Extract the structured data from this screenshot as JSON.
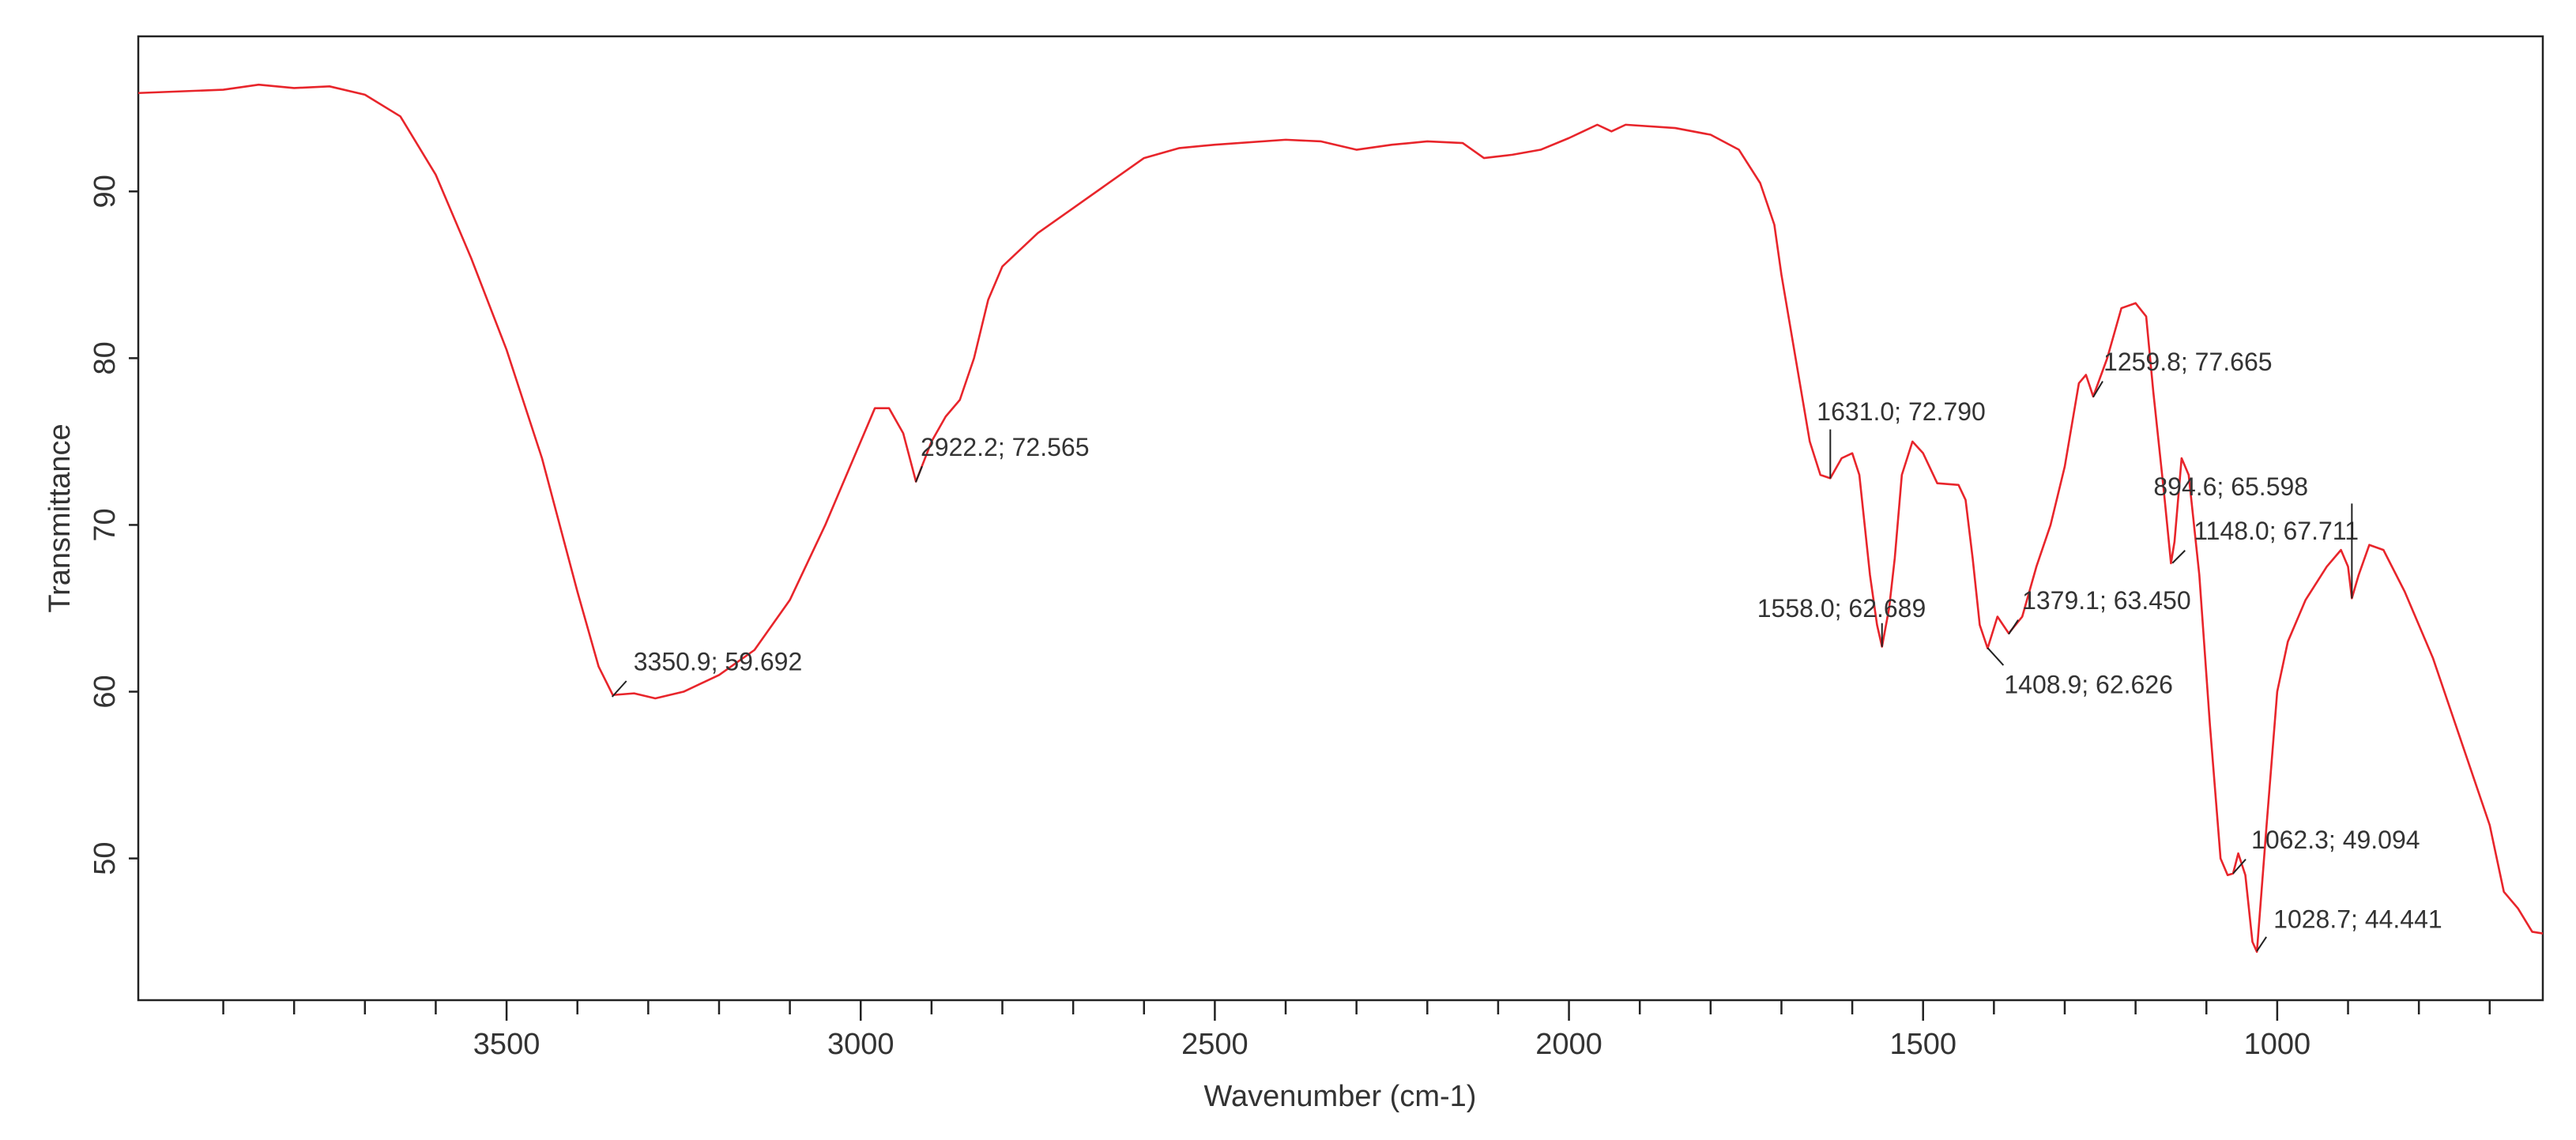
{
  "chart_data": {
    "type": "line",
    "xlabel": "Wavenumber (cm-1)",
    "ylabel": "Transmittance",
    "xlim": [
      4020,
      625
    ],
    "ylim": [
      41.5,
      99.3
    ],
    "xticks": [
      3500,
      3000,
      2500,
      2000,
      1500,
      1000
    ],
    "xminorticks": [
      3900,
      3800,
      3700,
      3600,
      3400,
      3300,
      3200,
      3100,
      2900,
      2800,
      2700,
      2600,
      2400,
      2300,
      2200,
      2100,
      1900,
      1800,
      1700,
      1600,
      1400,
      1300,
      1200,
      1100,
      900,
      800,
      700
    ],
    "yticks": [
      50,
      60,
      70,
      80,
      90
    ],
    "grid": false,
    "x": [
      4020,
      3900,
      3850,
      3800,
      3750,
      3700,
      3650,
      3600,
      3550,
      3500,
      3450,
      3400,
      3370,
      3350,
      3320,
      3290,
      3250,
      3200,
      3150,
      3100,
      3050,
      3000,
      2980,
      2960,
      2940,
      2922,
      2900,
      2880,
      2860,
      2840,
      2820,
      2800,
      2750,
      2700,
      2650,
      2600,
      2550,
      2500,
      2400,
      2350,
      2300,
      2250,
      2200,
      2150,
      2120,
      2080,
      2040,
      2000,
      1980,
      1960,
      1940,
      1920,
      1850,
      1800,
      1760,
      1730,
      1710,
      1700,
      1680,
      1660,
      1645,
      1631,
      1615,
      1600,
      1590,
      1575,
      1565,
      1558,
      1548,
      1540,
      1530,
      1515,
      1500,
      1480,
      1450,
      1440,
      1430,
      1420,
      1408.9,
      1395,
      1379.1,
      1360,
      1340,
      1320,
      1300,
      1280,
      1270,
      1259.8,
      1240,
      1220,
      1200,
      1185,
      1175,
      1160,
      1150,
      1145,
      1135,
      1125,
      1110,
      1095,
      1080,
      1070,
      1062.3,
      1055,
      1045,
      1035,
      1028.7,
      1015,
      1000,
      985,
      960,
      930,
      910,
      900,
      894.6,
      885,
      870,
      850,
      820,
      780,
      740,
      700,
      680,
      660,
      640,
      625
    ],
    "series": [
      {
        "name": "Transmittance",
        "color": "#e8252b",
        "values": [
          95.9,
          96.1,
          96.4,
          96.2,
          96.3,
          95.8,
          94.5,
          91,
          86,
          80.5,
          74,
          66,
          61.5,
          59.8,
          59.9,
          59.6,
          60.0,
          61.0,
          62.5,
          65.5,
          70,
          75,
          77,
          77,
          75.5,
          72.6,
          75,
          76.5,
          77.5,
          80,
          83.5,
          85.5,
          87.5,
          89,
          90.5,
          92,
          92.6,
          92.8,
          93.1,
          93,
          92.5,
          92.8,
          93,
          92.9,
          92.0,
          92.2,
          92.5,
          93.2,
          93.6,
          94,
          93.6,
          94,
          93.8,
          93.4,
          92.5,
          90.5,
          88,
          85,
          80,
          75,
          73.0,
          72.8,
          74,
          74.3,
          73,
          67,
          64,
          62.7,
          65,
          68,
          73,
          75,
          74.3,
          72.5,
          72.4,
          71.5,
          68,
          64,
          62.6,
          64.5,
          63.5,
          64.5,
          67.5,
          70,
          73.5,
          78.5,
          79,
          77.7,
          80,
          83,
          83.3,
          82.5,
          78,
          72,
          67.7,
          69,
          74,
          73,
          67,
          58,
          50,
          49,
          49.1,
          50.3,
          49,
          45,
          44.4,
          52,
          60,
          63,
          65.5,
          67.5,
          68.5,
          67.5,
          65.6,
          67,
          68.8,
          68.5,
          66,
          62,
          57,
          52,
          48,
          47,
          45.6,
          45.5
        ]
      }
    ],
    "annotations": [
      {
        "text": "3350.9; 59.692",
        "x": 3350.9,
        "y": 59.692
      },
      {
        "text": "2922.2; 72.565",
        "x": 2922.2,
        "y": 72.565
      },
      {
        "text": "1631.0; 72.790",
        "x": 1631.0,
        "y": 72.79
      },
      {
        "text": "1558.0; 62.689",
        "x": 1558.0,
        "y": 62.689
      },
      {
        "text": "1408.9; 62.626",
        "x": 1408.9,
        "y": 62.626
      },
      {
        "text": "1379.1; 63.450",
        "x": 1379.1,
        "y": 63.45
      },
      {
        "text": "1259.8; 77.665",
        "x": 1259.8,
        "y": 77.665
      },
      {
        "text": "1148.0; 67.711",
        "x": 1148.0,
        "y": 67.711
      },
      {
        "text": "894.6; 65.598",
        "x": 894.6,
        "y": 65.598
      },
      {
        "text": "1062.3; 49.094",
        "x": 1062.3,
        "y": 49.094
      },
      {
        "text": "1028.7; 44.441",
        "x": 1028.7,
        "y": 44.441
      }
    ]
  }
}
